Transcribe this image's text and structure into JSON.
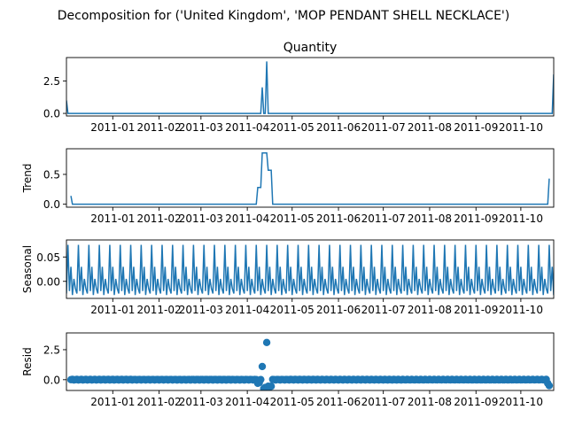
{
  "figure": {
    "suptitle": "Decomposition for ('United Kingdom', 'MOP PENDANT SHELL NECKLACE')"
  },
  "colors": {
    "series": "#1f77b4",
    "axes": "#000000",
    "background": "#ffffff"
  },
  "chart_data": [
    {
      "type": "line",
      "title": "Quantity",
      "ylabel": "",
      "x_range": [
        "2010-12-01",
        "2011-10-23"
      ],
      "ylim": [
        -0.2,
        4.3
      ],
      "yticks": [
        "0.0",
        "2.5"
      ],
      "xticks": [
        "2011-01",
        "2011-02",
        "2011-03",
        "2011-04",
        "2011-05",
        "2011-06",
        "2011-07",
        "2011-08",
        "2011-09",
        "2011-10"
      ],
      "baseline": 0,
      "points": [
        [
          "2010-12-01",
          1.0
        ],
        [
          "2010-12-02",
          0
        ],
        [
          "2011-04-10",
          0
        ],
        [
          "2011-04-11",
          2.0
        ],
        [
          "2011-04-12",
          0
        ],
        [
          "2011-04-13",
          0
        ],
        [
          "2011-04-14",
          4.0
        ],
        [
          "2011-04-15",
          0
        ],
        [
          "2011-10-22",
          0
        ],
        [
          "2011-10-23",
          3.0
        ]
      ]
    },
    {
      "type": "line",
      "title": "",
      "ylabel": "Trend",
      "x_range": [
        "2010-12-01",
        "2011-10-23"
      ],
      "ylim": [
        -0.05,
        0.93
      ],
      "yticks": [
        "0.0",
        "0.5"
      ],
      "xticks": [
        "2011-01",
        "2011-02",
        "2011-03",
        "2011-04",
        "2011-05",
        "2011-06",
        "2011-07",
        "2011-08",
        "2011-09",
        "2011-10"
      ],
      "baseline": 0,
      "points": [
        [
          "2010-12-04",
          0.14
        ],
        [
          "2010-12-05",
          0
        ],
        [
          "2011-04-07",
          0
        ],
        [
          "2011-04-08",
          0.28
        ],
        [
          "2011-04-10",
          0.28
        ],
        [
          "2011-04-11",
          0.86
        ],
        [
          "2011-04-14",
          0.86
        ],
        [
          "2011-04-15",
          0.57
        ],
        [
          "2011-04-17",
          0.57
        ],
        [
          "2011-04-18",
          0
        ],
        [
          "2011-10-19",
          0
        ],
        [
          "2011-10-20",
          0.43
        ]
      ]
    },
    {
      "type": "line",
      "title": "",
      "ylabel": "Seasonal",
      "x_range": [
        "2010-12-01",
        "2011-10-23"
      ],
      "ylim": [
        -0.035,
        0.085
      ],
      "yticks": [
        "0.00",
        "0.05"
      ],
      "xticks": [
        "2011-01",
        "2011-02",
        "2011-03",
        "2011-04",
        "2011-05",
        "2011-06",
        "2011-07",
        "2011-08",
        "2011-09",
        "2011-10"
      ],
      "period": 7,
      "cycle_start": "2010-12-01",
      "weekly_pattern": [
        -0.025,
        0.075,
        -0.02,
        0.03,
        -0.028,
        0.005,
        -0.015
      ]
    },
    {
      "type": "scatter",
      "title": "",
      "ylabel": "Resid",
      "x_range": [
        "2010-12-01",
        "2011-10-23"
      ],
      "ylim": [
        -0.9,
        3.9
      ],
      "yticks": [
        "0.0",
        "2.5"
      ],
      "xticks": [
        "2011-01",
        "2011-02",
        "2011-03",
        "2011-04",
        "2011-05",
        "2011-06",
        "2011-07",
        "2011-08",
        "2011-09",
        "2011-10"
      ],
      "x_start": "2010-12-04",
      "x_end": "2011-10-20",
      "default_value": 0,
      "jitter_amplitude": 0.06,
      "points": [
        [
          "2011-04-08",
          -0.3
        ],
        [
          "2011-04-09",
          -0.25
        ],
        [
          "2011-04-11",
          1.1
        ],
        [
          "2011-04-12",
          -0.75
        ],
        [
          "2011-04-13",
          -0.65
        ],
        [
          "2011-04-14",
          3.1
        ],
        [
          "2011-04-15",
          -0.55
        ],
        [
          "2011-04-16",
          -0.6
        ],
        [
          "2011-04-17",
          -0.55
        ],
        [
          "2011-10-19",
          -0.3
        ],
        [
          "2011-10-20",
          -0.5
        ]
      ]
    }
  ]
}
